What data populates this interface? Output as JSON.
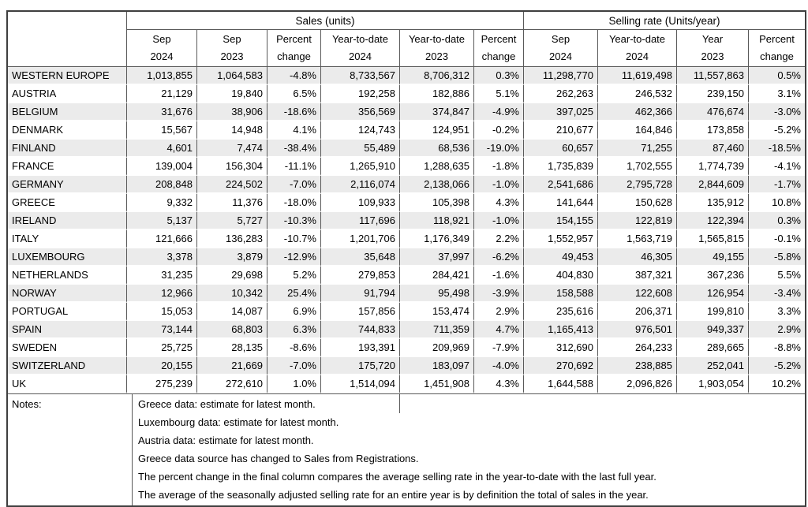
{
  "table": {
    "group_headers": [
      {
        "label": "Sales (units)"
      },
      {
        "label": "Selling rate (Units/year)"
      }
    ],
    "col_headers": [
      "Sep\n2024",
      "Sep\n2023",
      "Percent\nchange",
      "Year-to-date\n2024",
      "Year-to-date\n2023",
      "Percent\nchange",
      "Sep\n2024",
      "Year-to-date\n2024",
      "Year\n2023",
      "Percent\nchange"
    ],
    "rows": [
      {
        "country": "WESTERN EUROPE",
        "values": [
          "1,013,855",
          "1,064,583",
          "-4.8%",
          "8,733,567",
          "8,706,312",
          "0.3%",
          "11,298,770",
          "11,619,498",
          "11,557,863",
          "0.5%"
        ]
      },
      {
        "country": "AUSTRIA",
        "values": [
          "21,129",
          "19,840",
          "6.5%",
          "192,258",
          "182,886",
          "5.1%",
          "262,263",
          "246,532",
          "239,150",
          "3.1%"
        ]
      },
      {
        "country": "BELGIUM",
        "values": [
          "31,676",
          "38,906",
          "-18.6%",
          "356,569",
          "374,847",
          "-4.9%",
          "397,025",
          "462,366",
          "476,674",
          "-3.0%"
        ]
      },
      {
        "country": "DENMARK",
        "values": [
          "15,567",
          "14,948",
          "4.1%",
          "124,743",
          "124,951",
          "-0.2%",
          "210,677",
          "164,846",
          "173,858",
          "-5.2%"
        ]
      },
      {
        "country": "FINLAND",
        "values": [
          "4,601",
          "7,474",
          "-38.4%",
          "55,489",
          "68,536",
          "-19.0%",
          "60,657",
          "71,255",
          "87,460",
          "-18.5%"
        ]
      },
      {
        "country": "FRANCE",
        "values": [
          "139,004",
          "156,304",
          "-11.1%",
          "1,265,910",
          "1,288,635",
          "-1.8%",
          "1,735,839",
          "1,702,555",
          "1,774,739",
          "-4.1%"
        ]
      },
      {
        "country": "GERMANY",
        "values": [
          "208,848",
          "224,502",
          "-7.0%",
          "2,116,074",
          "2,138,066",
          "-1.0%",
          "2,541,686",
          "2,795,728",
          "2,844,609",
          "-1.7%"
        ]
      },
      {
        "country": "GREECE",
        "values": [
          "9,332",
          "11,376",
          "-18.0%",
          "109,933",
          "105,398",
          "4.3%",
          "141,644",
          "150,628",
          "135,912",
          "10.8%"
        ]
      },
      {
        "country": "IRELAND",
        "values": [
          "5,137",
          "5,727",
          "-10.3%",
          "117,696",
          "118,921",
          "-1.0%",
          "154,155",
          "122,819",
          "122,394",
          "0.3%"
        ]
      },
      {
        "country": "ITALY",
        "values": [
          "121,666",
          "136,283",
          "-10.7%",
          "1,201,706",
          "1,176,349",
          "2.2%",
          "1,552,957",
          "1,563,719",
          "1,565,815",
          "-0.1%"
        ]
      },
      {
        "country": "LUXEMBOURG",
        "values": [
          "3,378",
          "3,879",
          "-12.9%",
          "35,648",
          "37,997",
          "-6.2%",
          "49,453",
          "46,305",
          "49,155",
          "-5.8%"
        ]
      },
      {
        "country": "NETHERLANDS",
        "values": [
          "31,235",
          "29,698",
          "5.2%",
          "279,853",
          "284,421",
          "-1.6%",
          "404,830",
          "387,321",
          "367,236",
          "5.5%"
        ]
      },
      {
        "country": "NORWAY",
        "values": [
          "12,966",
          "10,342",
          "25.4%",
          "91,794",
          "95,498",
          "-3.9%",
          "158,588",
          "122,608",
          "126,954",
          "-3.4%"
        ]
      },
      {
        "country": "PORTUGAL",
        "values": [
          "15,053",
          "14,087",
          "6.9%",
          "157,856",
          "153,474",
          "2.9%",
          "235,616",
          "206,371",
          "199,810",
          "3.3%"
        ]
      },
      {
        "country": "SPAIN",
        "values": [
          "73,144",
          "68,803",
          "6.3%",
          "744,833",
          "711,359",
          "4.7%",
          "1,165,413",
          "976,501",
          "949,337",
          "2.9%"
        ]
      },
      {
        "country": "SWEDEN",
        "values": [
          "25,725",
          "28,135",
          "-8.6%",
          "193,391",
          "209,969",
          "-7.9%",
          "312,690",
          "264,233",
          "289,665",
          "-8.8%"
        ]
      },
      {
        "country": "SWITZERLAND",
        "values": [
          "20,155",
          "21,669",
          "-7.0%",
          "175,720",
          "183,097",
          "-4.0%",
          "270,692",
          "238,885",
          "252,041",
          "-5.2%"
        ]
      },
      {
        "country": "UK",
        "values": [
          "275,239",
          "272,610",
          "1.0%",
          "1,514,094",
          "1,451,908",
          "4.3%",
          "1,644,588",
          "2,096,826",
          "1,903,054",
          "10.2%"
        ]
      }
    ]
  },
  "notes": {
    "label": "Notes:",
    "lines": [
      "Greece data: estimate for latest month.",
      "Luxembourg data: estimate for latest month.",
      "Austria data: estimate for latest month.",
      "Greece data source has changed to Sales from Registrations.",
      "The percent change in the final column compares the average selling rate in the year-to-date with the last full year.",
      "The average of the seasonally adjusted selling rate for an entire year is by definition the total of sales in the year."
    ]
  },
  "colors": {
    "row_shade": "#ebebeb",
    "border_dark": "#595959",
    "border_outer": "#3f3f3f",
    "text": "#000000"
  }
}
